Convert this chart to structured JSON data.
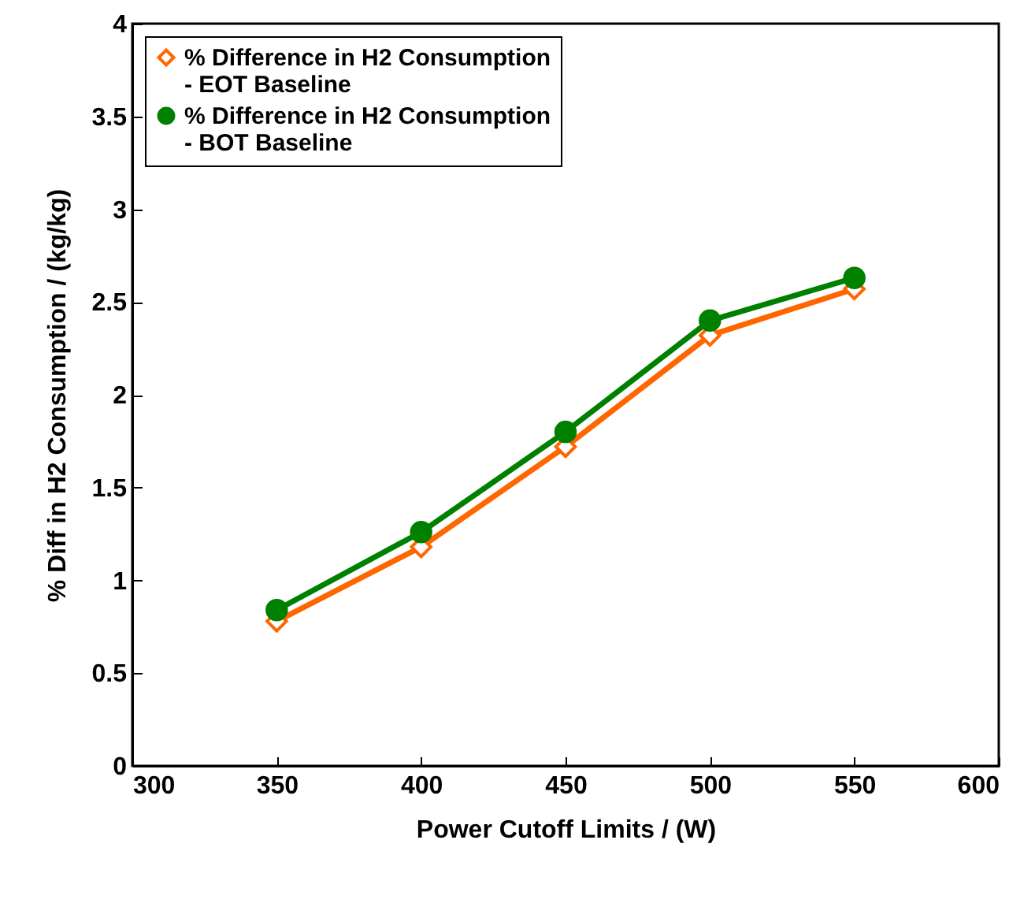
{
  "chart_data": {
    "type": "line",
    "xlabel": "Power Cutoff Limits / (W)",
    "ylabel": "% Diff in H2 Consumption / (kg/kg)",
    "x": [
      350,
      400,
      450,
      500,
      550
    ],
    "series": [
      {
        "name": "% Difference in H2 Consumption - EOT Baseline",
        "color": "#ff6600",
        "marker": "diamond",
        "values": [
          0.78,
          1.18,
          1.72,
          2.32,
          2.57
        ]
      },
      {
        "name": "% Difference in H2 Consumption - BOT Baseline",
        "color": "#008000",
        "marker": "circle",
        "values": [
          0.84,
          1.26,
          1.8,
          2.4,
          2.63
        ]
      }
    ],
    "xlim": [
      300,
      600
    ],
    "xticks": [
      300,
      350,
      400,
      450,
      500,
      550,
      600
    ],
    "ylim": [
      0,
      4
    ],
    "yticks": [
      0,
      0.5,
      1,
      1.5,
      2,
      2.5,
      3,
      3.5,
      4
    ],
    "grid": false,
    "legend": "top left",
    "line_style": "solid"
  }
}
